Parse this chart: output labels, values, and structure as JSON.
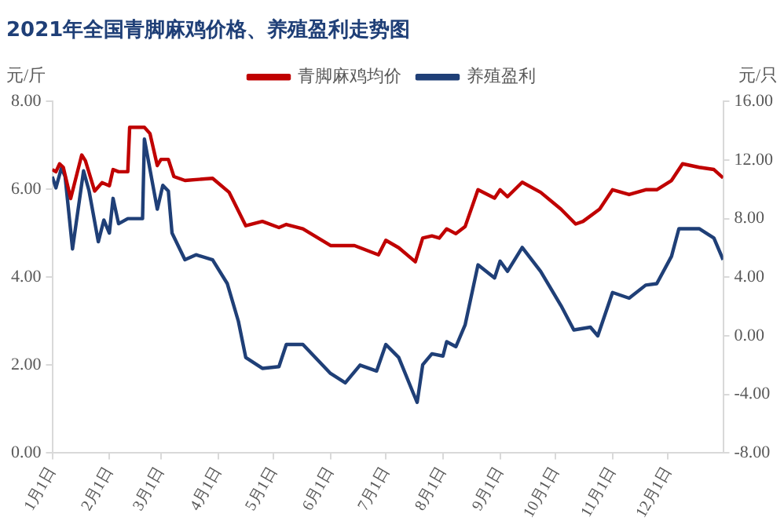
{
  "chart_data": {
    "type": "line",
    "title": "2021年全国青脚麻鸡价格、养殖盈利走势图",
    "ylabel": "元/斤",
    "y2label": "元/只",
    "legend": "top",
    "grid": false,
    "marker": "none",
    "line_style": "solid",
    "xlim": [
      "--01-01",
      "--12-31"
    ],
    "xticks": [
      {
        "value": "--01-01",
        "label": "1月1日"
      },
      {
        "value": "--02-01",
        "label": "2月1日"
      },
      {
        "value": "--03-01",
        "label": "3月1日"
      },
      {
        "value": "--04-01",
        "label": "4月1日"
      },
      {
        "value": "--05-01",
        "label": "5月1日"
      },
      {
        "value": "--06-01",
        "label": "6月1日"
      },
      {
        "value": "--07-01",
        "label": "7月1日"
      },
      {
        "value": "--08-01",
        "label": "8月1日"
      },
      {
        "value": "--09-01",
        "label": "9月1日"
      },
      {
        "value": "--10-01",
        "label": "10月1日"
      },
      {
        "value": "--11-01",
        "label": "11月1日"
      },
      {
        "value": "--12-01",
        "label": "12月1日"
      }
    ],
    "ylim": [
      0,
      8
    ],
    "yticks": [
      {
        "value": 0,
        "label": "0.00"
      },
      {
        "value": 2,
        "label": "2.00"
      },
      {
        "value": 4,
        "label": "4.00"
      },
      {
        "value": 6,
        "label": "6.00"
      },
      {
        "value": 8,
        "label": "8.00"
      }
    ],
    "y2lim": [
      -8,
      16
    ],
    "y2ticks": [
      {
        "value": -8,
        "label": "-8.00"
      },
      {
        "value": -4,
        "label": "-4.00"
      },
      {
        "value": 0,
        "label": "0.00"
      },
      {
        "value": 4,
        "label": "4.00"
      },
      {
        "value": 8,
        "label": "8.00"
      },
      {
        "value": 12,
        "label": "12.00"
      },
      {
        "value": 16,
        "label": "16.00"
      }
    ],
    "series": [
      {
        "name": "青脚麻鸡均价",
        "color": "#c00000",
        "x": [
          "--01-01",
          "--01-03",
          "--01-05",
          "--01-07",
          "--01-11",
          "--01-17",
          "--01-19",
          "--01-24",
          "--01-28",
          "--02-01",
          "--02-03",
          "--02-06",
          "--02-11",
          "--02-12",
          "--02-20",
          "--02-23",
          "--02-27",
          "--03-01",
          "--03-05",
          "--03-08",
          "--03-14",
          "--03-29",
          "--04-07",
          "--04-16",
          "--04-25",
          "--05-04",
          "--05-08",
          "--05-17",
          "--06-01",
          "--06-14",
          "--06-27",
          "--07-01",
          "--07-08",
          "--07-17",
          "--07-21",
          "--07-26",
          "--07-30",
          "--08-03",
          "--08-08",
          "--08-13",
          "--08-20",
          "--08-29",
          "--09-01",
          "--09-05",
          "--09-13",
          "--09-23",
          "--10-04",
          "--10-12",
          "--10-16",
          "--10-25",
          "--11-01",
          "--11-10",
          "--11-19",
          "--11-25",
          "--12-03",
          "--12-09",
          "--12-18",
          "--12-26",
          "--12-31"
        ],
        "values": [
          6.45,
          6.4,
          6.58,
          6.5,
          5.79,
          6.78,
          6.65,
          5.96,
          6.15,
          6.08,
          6.45,
          6.4,
          6.4,
          7.41,
          7.41,
          7.27,
          6.54,
          6.68,
          6.68,
          6.29,
          6.2,
          6.25,
          5.93,
          5.17,
          5.27,
          5.13,
          5.2,
          5.1,
          4.72,
          4.72,
          4.51,
          4.84,
          4.67,
          4.35,
          4.89,
          4.94,
          4.89,
          5.1,
          4.99,
          5.15,
          5.99,
          5.8,
          5.99,
          5.83,
          6.16,
          5.93,
          5.55,
          5.21,
          5.27,
          5.55,
          5.99,
          5.88,
          5.99,
          5.99,
          6.2,
          6.58,
          6.5,
          6.45,
          6.26
        ]
      },
      {
        "name": "养殖盈利",
        "color": "#1f3f77",
        "axis": "y2",
        "x": [
          "--01-01",
          "--01-03",
          "--01-06",
          "--01-08",
          "--01-12",
          "--01-18",
          "--01-21",
          "--01-26",
          "--01-29",
          "--02-01",
          "--02-03",
          "--02-06",
          "--02-11",
          "--02-19",
          "--02-20",
          "--02-27",
          "--03-02",
          "--03-05",
          "--03-07",
          "--03-14",
          "--03-20",
          "--03-29",
          "--04-06",
          "--04-12",
          "--04-16",
          "--04-25",
          "--05-04",
          "--05-08",
          "--05-17",
          "--06-01",
          "--06-09",
          "--06-17",
          "--06-26",
          "--07-01",
          "--07-08",
          "--07-16",
          "--07-18",
          "--07-21",
          "--07-26",
          "--08-01",
          "--08-03",
          "--08-08",
          "--08-13",
          "--08-20",
          "--08-29",
          "--09-01",
          "--09-05",
          "--09-13",
          "--09-23",
          "--10-04",
          "--10-11",
          "--10-20",
          "--10-24",
          "--11-01",
          "--11-10",
          "--11-19",
          "--11-25",
          "--12-03",
          "--12-07",
          "--12-18",
          "--12-26",
          "--12-31"
        ],
        "values": [
          10.86,
          10.1,
          11.46,
          10.86,
          5.93,
          11.26,
          9.88,
          6.42,
          7.9,
          7.01,
          9.38,
          7.65,
          8.0,
          8.0,
          13.43,
          8.64,
          10.27,
          9.88,
          7.01,
          5.19,
          5.53,
          5.19,
          3.56,
          0.99,
          -1.48,
          -2.22,
          -2.1,
          -0.59,
          -0.59,
          -2.57,
          -3.21,
          -2.0,
          -2.4,
          -0.59,
          -1.48,
          -3.95,
          -4.54,
          -1.98,
          -1.23,
          -1.38,
          -0.4,
          -0.74,
          0.74,
          4.84,
          3.95,
          5.1,
          4.4,
          6.03,
          4.4,
          2.07,
          0.4,
          0.59,
          0,
          2.96,
          2.57,
          3.46,
          3.56,
          5.43,
          7.31,
          7.31,
          6.67,
          5.19
        ]
      }
    ]
  }
}
